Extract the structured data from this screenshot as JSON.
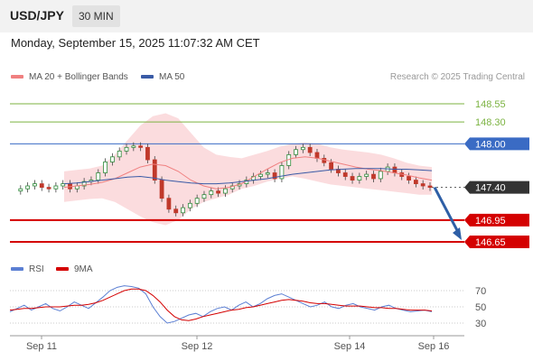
{
  "header": {
    "symbol": "USD/JPY",
    "interval": "30 MIN"
  },
  "datetime": "Monday, September 15, 2025 11:07:32 AM CET",
  "credit": "Research © 2025 Trading Central",
  "colors": {
    "price_line": "#3a6bc4",
    "support": "#d40000",
    "resistance": "#7cb342",
    "bollinger": "#f7c0c3",
    "ma20": "#f08080",
    "ma50": "#3a5ba6",
    "rsi": "#5b7fd3",
    "rsi_ma": "#d40000",
    "arrow": "#2e5fa6"
  },
  "chart_data": [
    {
      "type": "candlestick",
      "legend": [
        {
          "label": "MA 20 + Bollinger Bands",
          "color": "#f08080"
        },
        {
          "label": "MA 50",
          "color": "#3a5ba6"
        }
      ],
      "ylim": [
        146.6,
        148.65
      ],
      "levels": [
        {
          "label": "148.55",
          "value": 148.55,
          "kind": "resistance"
        },
        {
          "label": "148.30",
          "value": 148.3,
          "kind": "resistance"
        },
        {
          "label": "148.00",
          "value": 148.0,
          "kind": "pivot"
        },
        {
          "label": "147.40",
          "value": 147.4,
          "kind": "last"
        },
        {
          "label": "146.95",
          "value": 146.95,
          "kind": "support"
        },
        {
          "label": "146.65",
          "value": 146.65,
          "kind": "support"
        }
      ],
      "last_price": 147.4,
      "forecast": {
        "from": 147.4,
        "to": 146.65,
        "direction": "down"
      },
      "x_ticks": [
        "Sep 11",
        "Sep 12",
        "Sep 14",
        "Sep 16"
      ],
      "price_path": [
        147.35,
        147.38,
        147.42,
        147.45,
        147.4,
        147.38,
        147.42,
        147.45,
        147.38,
        147.42,
        147.48,
        147.5,
        147.6,
        147.75,
        147.82,
        147.9,
        147.95,
        147.97,
        147.95,
        147.78,
        147.5,
        147.25,
        147.1,
        147.05,
        147.12,
        147.18,
        147.25,
        147.3,
        147.35,
        147.32,
        147.38,
        147.42,
        147.45,
        147.5,
        147.55,
        147.58,
        147.6,
        147.52,
        147.7,
        147.85,
        147.92,
        147.95,
        147.88,
        147.8,
        147.74,
        147.65,
        147.6,
        147.55,
        147.5,
        147.55,
        147.58,
        147.52,
        147.62,
        147.68,
        147.6,
        147.55,
        147.5,
        147.45,
        147.42,
        147.4
      ],
      "bollinger_upper": [
        147.62,
        147.64,
        147.66,
        147.7,
        147.85,
        148.05,
        148.25,
        148.38,
        148.42,
        148.35,
        148.15,
        147.95,
        147.85,
        147.82,
        147.8,
        147.85,
        147.9,
        147.96,
        148.0,
        148.02,
        148.0,
        147.95,
        147.92,
        147.9,
        147.88,
        147.85,
        147.8,
        147.74,
        147.7,
        147.68
      ],
      "bollinger_lower": [
        147.2,
        147.22,
        147.24,
        147.25,
        147.2,
        147.1,
        147.0,
        146.92,
        146.88,
        146.95,
        147.1,
        147.2,
        147.25,
        147.3,
        147.38,
        147.42,
        147.48,
        147.52,
        147.55,
        147.52,
        147.48,
        147.44,
        147.42,
        147.4,
        147.38,
        147.36,
        147.34,
        147.32,
        147.3,
        147.3
      ],
      "ma20": [
        147.4,
        147.42,
        147.44,
        147.47,
        147.52,
        147.6,
        147.68,
        147.72,
        147.7,
        147.62,
        147.5,
        147.42,
        147.38,
        147.4,
        147.45,
        147.55,
        147.65,
        147.74,
        147.8,
        147.82,
        147.8,
        147.76,
        147.72,
        147.68,
        147.65,
        147.63,
        147.6,
        147.57,
        147.53,
        147.5
      ],
      "ma50": [
        147.45,
        147.46,
        147.48,
        147.5,
        147.52,
        147.54,
        147.55,
        147.53,
        147.5,
        147.48,
        147.46,
        147.45,
        147.45,
        147.46,
        147.48,
        147.5,
        147.52,
        147.55,
        147.58,
        147.6,
        147.62,
        147.64,
        147.65,
        147.66,
        147.66,
        147.66,
        147.65,
        147.65,
        147.64,
        147.63
      ]
    },
    {
      "type": "line",
      "legend": [
        {
          "label": "RSI",
          "color": "#5b7fd3"
        },
        {
          "label": "9MA",
          "color": "#d40000"
        }
      ],
      "ylim": [
        20,
        80
      ],
      "y_ticks": [
        {
          "label": "70",
          "value": 70
        },
        {
          "label": "50",
          "value": 50
        },
        {
          "label": "30",
          "value": 30
        }
      ],
      "rsi": [
        44,
        48,
        52,
        46,
        50,
        54,
        48,
        45,
        50,
        56,
        52,
        48,
        55,
        62,
        70,
        74,
        76,
        75,
        73,
        66,
        50,
        38,
        30,
        32,
        36,
        40,
        42,
        38,
        44,
        48,
        50,
        46,
        52,
        56,
        50,
        54,
        60,
        64,
        66,
        62,
        58,
        54,
        50,
        52,
        56,
        50,
        48,
        52,
        54,
        50,
        48,
        46,
        50,
        52,
        48,
        46,
        44,
        45,
        46,
        44
      ],
      "rsi_ma": [
        46,
        47,
        48,
        48,
        49,
        50,
        50,
        50,
        51,
        52,
        52,
        53,
        55,
        58,
        62,
        66,
        70,
        72,
        72,
        70,
        64,
        56,
        46,
        38,
        34,
        33,
        35,
        38,
        40,
        42,
        44,
        46,
        47,
        49,
        50,
        52,
        54,
        56,
        58,
        59,
        58,
        57,
        55,
        54,
        54,
        53,
        52,
        51,
        51,
        51,
        50,
        49,
        49,
        48,
        48,
        47,
        46,
        46,
        46,
        45
      ]
    }
  ]
}
